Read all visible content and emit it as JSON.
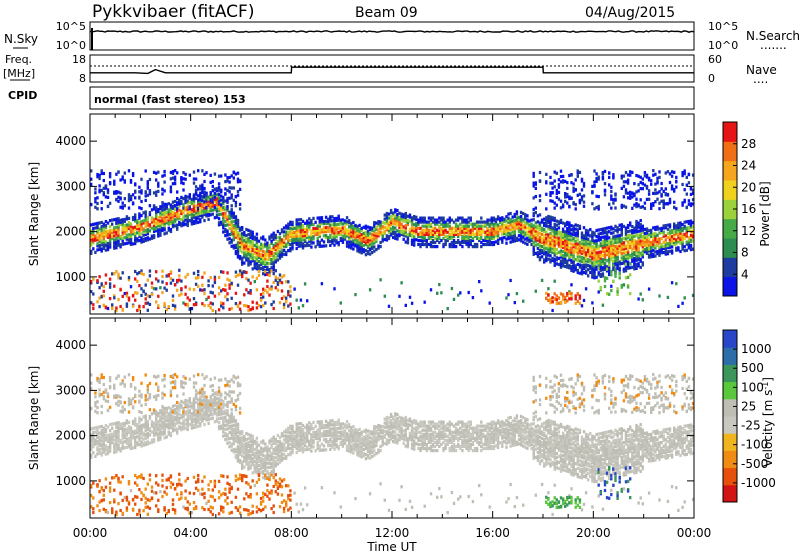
{
  "header": {
    "title": "Pykkvibaer (fitACF)",
    "beam": "Beam 09",
    "date": "04/Aug/2015"
  },
  "sky_panel": {
    "left_label": "N.Sky",
    "left_ticks": [
      "10^5",
      "10^0"
    ],
    "right_ticks": [
      "10^5",
      "10^0"
    ],
    "right_label": "N.Search",
    "right_label_marker": "......."
  },
  "freq_panel": {
    "left_label_top": "Freq.",
    "left_label_unit": "[MHz]",
    "left_ticks": [
      "18",
      "8"
    ],
    "right_ticks": [
      "60",
      "0"
    ],
    "right_label": "Nave",
    "right_label_marker": "...."
  },
  "cpid_panel": {
    "label": "CPID",
    "text": "normal (fast stereo) 153"
  },
  "colors": {
    "power_scale": [
      "#0a14e6",
      "#1e3ca0",
      "#2d8c50",
      "#46aa46",
      "#9bd23c",
      "#f0d21e",
      "#f5a51e",
      "#f06e14",
      "#e61414"
    ],
    "velocity_scale": [
      "#2846c8",
      "#2d6eaa",
      "#3c965a",
      "#5ac83c",
      "#bebeb4",
      "#c8c8c0",
      "#f0b41e",
      "#f08c14",
      "#e6500a",
      "#d21414"
    ]
  },
  "chart_data": [
    {
      "type": "line",
      "name_hint": "sky-noise",
      "x": [
        "00:00",
        "04:00",
        "08:00",
        "12:00",
        "16:00",
        "20:00",
        "00:00"
      ],
      "series": [
        {
          "values": [
            3.3,
            3.3,
            3.3,
            3.3,
            3.3,
            3.3,
            3.3
          ]
        }
      ],
      "ylim": [
        0,
        5
      ],
      "log_scale": true
    },
    {
      "type": "line",
      "name_hint": "frequency",
      "x_hours": [
        0,
        1.8,
        2.3,
        2.6,
        3.0,
        8.0,
        8.01,
        18.0,
        18.01,
        24.0
      ],
      "series": [
        {
          "values": [
            11.4,
            11.4,
            11.2,
            12.6,
            11.4,
            11.4,
            13.5,
            13.5,
            11.4,
            11.4
          ]
        }
      ],
      "ylim": [
        8,
        18
      ]
    },
    {
      "type": "heatmap",
      "name_hint": "power",
      "ylabel": "Slant Range [km]",
      "xlim_hours": [
        0,
        24
      ],
      "ylim": [
        180,
        4600
      ],
      "y_ticks": [
        1000,
        2000,
        3000,
        4000
      ],
      "x_ticks": [
        "00:00",
        "04:00",
        "08:00",
        "12:00",
        "16:00",
        "20:00",
        "00:00"
      ],
      "colorbar_label": "Power [dB]",
      "colorbar_ticks": [
        4,
        8,
        12,
        16,
        20,
        24,
        28
      ],
      "colorbar_range": [
        0,
        32
      ],
      "main_band_center_km": [
        [
          0,
          1850
        ],
        [
          2,
          2100
        ],
        [
          4,
          2500
        ],
        [
          5,
          2650
        ],
        [
          6,
          1700
        ],
        [
          7,
          1450
        ],
        [
          8,
          1950
        ],
        [
          10,
          2050
        ],
        [
          11,
          1800
        ],
        [
          12,
          2200
        ],
        [
          13,
          2000
        ],
        [
          16,
          2000
        ],
        [
          17,
          2150
        ],
        [
          18,
          1850
        ],
        [
          20,
          1500
        ],
        [
          22,
          1750
        ],
        [
          24,
          1950
        ]
      ]
    },
    {
      "type": "heatmap",
      "name_hint": "velocity",
      "ylabel": "Slant Range [km]",
      "xlabel": "Time UT",
      "xlim_hours": [
        0,
        24
      ],
      "ylim": [
        180,
        4600
      ],
      "y_ticks": [
        1000,
        2000,
        3000,
        4000
      ],
      "x_ticks": [
        "00:00",
        "04:00",
        "08:00",
        "12:00",
        "16:00",
        "20:00",
        "00:00"
      ],
      "colorbar_label": "Velocity [m s^-1]",
      "colorbar_ticks": [
        "1000",
        "500",
        "100",
        "25",
        "-25",
        "-100",
        "-500",
        "-1000"
      ]
    }
  ],
  "axis": {
    "xlabel": "Time UT",
    "x_ticks": [
      "00:00",
      "04:00",
      "08:00",
      "12:00",
      "16:00",
      "20:00",
      "00:00"
    ],
    "y_ticks": [
      "4000",
      "3000",
      "2000",
      "1000"
    ],
    "ylabel": "Slant Range [km]"
  },
  "power_colorbar": {
    "label": "Power [dB]",
    "ticks": [
      "28",
      "24",
      "20",
      "16",
      "12",
      "8",
      "4"
    ]
  },
  "velocity_colorbar": {
    "label_text": "Velocity [m s",
    "label_sup": "-1",
    "label_close": "]",
    "ticks": [
      "1000",
      "500",
      "100",
      "25",
      "-25",
      "-100",
      "-500",
      "-1000"
    ]
  }
}
